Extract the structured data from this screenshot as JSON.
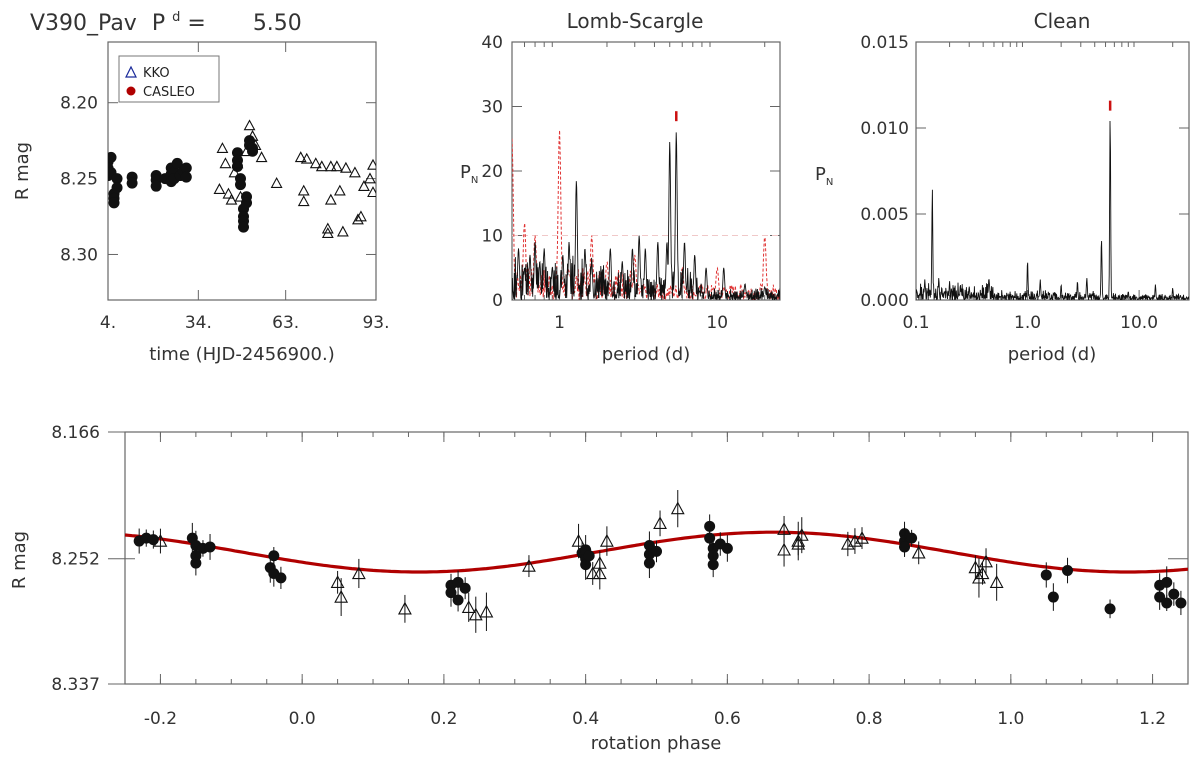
{
  "colors": {
    "red": "#cc1111",
    "dark_red": "#b00000",
    "black": "#111111",
    "frame": "#666666",
    "noise_red": "#e03333"
  },
  "chart_data": [
    {
      "id": "light-curve",
      "type": "scatter",
      "title_star": "V390_Pav",
      "title_period_label": "P",
      "title_period_sup": "d",
      "title_period_eq": "=",
      "title_period_value": "5.50",
      "xlabel": "time (HJD-2456900.)",
      "ylabel": "R mag",
      "xlim": [
        4,
        93
      ],
      "ylim": [
        8.33,
        8.16
      ],
      "xticks": [
        "4.",
        "34.",
        "63.",
        "93."
      ],
      "xtick_values": [
        4,
        34,
        63,
        93
      ],
      "yticks": [
        "8.20",
        "8.25",
        "8.30"
      ],
      "ytick_values": [
        8.2,
        8.25,
        8.3
      ],
      "legend": [
        {
          "marker": "triangle",
          "label": "KKO"
        },
        {
          "marker": "dot",
          "label": "CASLEO"
        }
      ],
      "casleo": [
        [
          4,
          8.239
        ],
        [
          4,
          8.243
        ],
        [
          4,
          8.248
        ],
        [
          5,
          8.236
        ],
        [
          5,
          8.246
        ],
        [
          6,
          8.26
        ],
        [
          6,
          8.263
        ],
        [
          6,
          8.266
        ],
        [
          7,
          8.25
        ],
        [
          7,
          8.256
        ],
        [
          12,
          8.249
        ],
        [
          12,
          8.253
        ],
        [
          20,
          8.248
        ],
        [
          20,
          8.251
        ],
        [
          20,
          8.255
        ],
        [
          23,
          8.25
        ],
        [
          25,
          8.243
        ],
        [
          25,
          8.247
        ],
        [
          25,
          8.252
        ],
        [
          26,
          8.246
        ],
        [
          26,
          8.25
        ],
        [
          27,
          8.24
        ],
        [
          28,
          8.248
        ],
        [
          29,
          8.245
        ],
        [
          30,
          8.243
        ],
        [
          30,
          8.249
        ],
        [
          47,
          8.233
        ],
        [
          47,
          8.238
        ],
        [
          47,
          8.242
        ],
        [
          49,
          8.27
        ],
        [
          49,
          8.275
        ],
        [
          49,
          8.278
        ],
        [
          49,
          8.282
        ],
        [
          50,
          8.262
        ],
        [
          50,
          8.266
        ],
        [
          51,
          8.225
        ],
        [
          51,
          8.228
        ],
        [
          52,
          8.232
        ],
        [
          52,
          8.23
        ],
        [
          48,
          8.254
        ],
        [
          48,
          8.25
        ]
      ],
      "kko": [
        [
          41,
          8.257
        ],
        [
          42,
          8.23
        ],
        [
          43,
          8.24
        ],
        [
          44,
          8.26
        ],
        [
          45,
          8.264
        ],
        [
          46,
          8.246
        ],
        [
          47,
          8.24
        ],
        [
          48,
          8.262
        ],
        [
          50,
          8.232
        ],
        [
          51,
          8.215
        ],
        [
          52,
          8.222
        ],
        [
          53,
          8.228
        ],
        [
          55,
          8.236
        ],
        [
          60,
          8.253
        ],
        [
          68,
          8.236
        ],
        [
          69,
          8.258
        ],
        [
          69,
          8.265
        ],
        [
          70,
          8.237
        ],
        [
          73,
          8.24
        ],
        [
          75,
          8.242
        ],
        [
          77,
          8.283
        ],
        [
          77,
          8.286
        ],
        [
          78,
          8.264
        ],
        [
          78,
          8.242
        ],
        [
          80,
          8.242
        ],
        [
          81,
          8.258
        ],
        [
          82,
          8.285
        ],
        [
          83,
          8.243
        ],
        [
          86,
          8.246
        ],
        [
          87,
          8.277
        ],
        [
          88,
          8.275
        ],
        [
          89,
          8.255
        ],
        [
          91,
          8.25
        ],
        [
          92,
          8.241
        ],
        [
          92,
          8.259
        ]
      ]
    },
    {
      "id": "lomb-scargle",
      "type": "line",
      "title": "Lomb-Scargle",
      "xlabel": "period (d)",
      "ylabel": "P",
      "ylabel_sub": "N",
      "xscale": "log",
      "xlim": [
        0.5,
        25
      ],
      "ylim": [
        0,
        40
      ],
      "xticks": [
        "1",
        "10"
      ],
      "xtick_values": [
        1,
        10
      ],
      "yticks": [
        "0",
        "10",
        "20",
        "30",
        "40"
      ],
      "ytick_values": [
        0,
        10,
        20,
        30,
        40
      ],
      "peak_marker_period": 5.5,
      "peak_marker_power": 28.5,
      "false_alarm_level": 10,
      "main_peaks": [
        [
          0.55,
          8
        ],
        [
          0.6,
          5
        ],
        [
          0.65,
          7
        ],
        [
          0.7,
          9
        ],
        [
          0.75,
          6
        ],
        [
          0.8,
          8
        ],
        [
          0.9,
          5
        ],
        [
          1.05,
          7
        ],
        [
          1.15,
          9
        ],
        [
          1.28,
          18.5
        ],
        [
          1.45,
          8
        ],
        [
          1.6,
          6
        ],
        [
          2.1,
          8
        ],
        [
          2.5,
          6
        ],
        [
          2.9,
          8
        ],
        [
          3.2,
          10
        ],
        [
          3.5,
          8
        ],
        [
          4.2,
          9
        ],
        [
          4.8,
          9
        ],
        [
          5.0,
          24.5
        ],
        [
          5.5,
          26
        ],
        [
          6.2,
          9
        ],
        [
          7.2,
          7
        ],
        [
          8.5,
          5
        ],
        [
          11,
          5
        ],
        [
          15,
          2.5
        ],
        [
          20,
          2
        ]
      ],
      "window_peaks": [
        [
          1.0,
          26.5
        ],
        [
          0.5,
          25
        ],
        [
          1.6,
          10
        ],
        [
          0.6,
          12
        ],
        [
          0.7,
          10
        ],
        [
          2.0,
          6
        ],
        [
          3.0,
          7
        ],
        [
          6,
          5
        ],
        [
          10,
          5
        ],
        [
          20,
          10
        ]
      ]
    },
    {
      "id": "clean",
      "type": "line",
      "title": "Clean",
      "xlabel": "period (d)",
      "ylabel": "P",
      "ylabel_sub": "N",
      "xscale": "log",
      "xlim": [
        0.1,
        28
      ],
      "ylim": [
        0,
        0.015
      ],
      "xticks": [
        "0.1",
        "1.0",
        "10.0"
      ],
      "xtick_values": [
        0.1,
        1.0,
        10.0
      ],
      "yticks": [
        "0.000",
        "0.005",
        "0.010",
        "0.015"
      ],
      "ytick_values": [
        0,
        0.005,
        0.01,
        0.015
      ],
      "peak_marker_period": 5.5,
      "peak_marker_power": 0.0113,
      "peaks": [
        [
          0.12,
          0.0012
        ],
        [
          0.14,
          0.0065
        ],
        [
          0.16,
          0.0013
        ],
        [
          0.2,
          0.0011
        ],
        [
          0.25,
          0.0009
        ],
        [
          0.3,
          0.0008
        ],
        [
          0.45,
          0.0013
        ],
        [
          1.0,
          0.0023
        ],
        [
          1.3,
          0.0012
        ],
        [
          2.0,
          0.0009
        ],
        [
          2.8,
          0.0011
        ],
        [
          3.4,
          0.0013
        ],
        [
          4.6,
          0.0036
        ],
        [
          5.5,
          0.0107
        ],
        [
          8,
          0.0005
        ],
        [
          14,
          0.0009
        ],
        [
          20,
          0.0007
        ]
      ]
    },
    {
      "id": "phase-curve",
      "type": "scatter",
      "xlabel": "rotation phase",
      "ylabel": "R mag",
      "xlim": [
        -0.25,
        1.25
      ],
      "ylim": [
        8.337,
        8.166
      ],
      "xticks": [
        "-0.2",
        "0.0",
        "0.2",
        "0.4",
        "0.6",
        "0.8",
        "1.0",
        "1.2"
      ],
      "xtick_values": [
        -0.2,
        0,
        0.2,
        0.4,
        0.6,
        0.8,
        1.0,
        1.2
      ],
      "yticks": [
        "8.166",
        "8.252",
        "8.337"
      ],
      "ytick_values": [
        8.166,
        8.252,
        8.337
      ],
      "fit": {
        "mean": 8.2475,
        "amplitude": 0.0135,
        "phase_of_max": 0.665
      },
      "casleo": [
        [
          -0.23,
          8.24
        ],
        [
          -0.22,
          8.238
        ],
        [
          -0.21,
          8.239
        ],
        [
          -0.155,
          8.238
        ],
        [
          -0.15,
          8.243
        ],
        [
          -0.15,
          8.25
        ],
        [
          -0.15,
          8.255
        ],
        [
          -0.14,
          8.245
        ],
        [
          -0.13,
          8.244
        ],
        [
          -0.045,
          8.258
        ],
        [
          -0.04,
          8.25
        ],
        [
          -0.04,
          8.262
        ],
        [
          -0.03,
          8.265
        ],
        [
          0.21,
          8.27
        ],
        [
          0.21,
          8.275
        ],
        [
          0.22,
          8.28
        ],
        [
          0.22,
          8.268
        ],
        [
          0.23,
          8.272
        ],
        [
          0.395,
          8.248
        ],
        [
          0.4,
          8.252
        ],
        [
          0.4,
          8.256
        ],
        [
          0.4,
          8.246
        ],
        [
          0.405,
          8.25
        ],
        [
          0.49,
          8.243
        ],
        [
          0.49,
          8.249
        ],
        [
          0.49,
          8.255
        ],
        [
          0.5,
          8.247
        ],
        [
          0.575,
          8.23
        ],
        [
          0.575,
          8.238
        ],
        [
          0.58,
          8.245
        ],
        [
          0.58,
          8.25
        ],
        [
          0.58,
          8.256
        ],
        [
          0.59,
          8.242
        ],
        [
          0.6,
          8.245
        ],
        [
          0.85,
          8.235
        ],
        [
          0.85,
          8.24
        ],
        [
          0.85,
          8.244
        ],
        [
          0.86,
          8.238
        ],
        [
          1.05,
          8.263
        ],
        [
          1.06,
          8.278
        ],
        [
          1.08,
          8.26
        ],
        [
          1.14,
          8.286
        ],
        [
          1.21,
          8.27
        ],
        [
          1.21,
          8.278
        ],
        [
          1.22,
          8.282
        ],
        [
          1.22,
          8.268
        ],
        [
          1.23,
          8.276
        ],
        [
          1.24,
          8.282
        ]
      ],
      "kko": [
        [
          -0.2,
          8.24
        ],
        [
          0.05,
          8.268
        ],
        [
          0.055,
          8.278
        ],
        [
          0.08,
          8.262
        ],
        [
          0.145,
          8.286
        ],
        [
          0.235,
          8.285
        ],
        [
          0.245,
          8.29
        ],
        [
          0.26,
          8.288
        ],
        [
          0.32,
          8.257
        ],
        [
          0.39,
          8.24
        ],
        [
          0.41,
          8.262
        ],
        [
          0.42,
          8.255
        ],
        [
          0.42,
          8.262
        ],
        [
          0.43,
          8.24
        ],
        [
          0.505,
          8.228
        ],
        [
          0.53,
          8.218
        ],
        [
          0.68,
          8.232
        ],
        [
          0.68,
          8.246
        ],
        [
          0.7,
          8.24
        ],
        [
          0.7,
          8.242
        ],
        [
          0.705,
          8.236
        ],
        [
          0.77,
          8.242
        ],
        [
          0.78,
          8.24
        ],
        [
          0.79,
          8.238
        ],
        [
          0.87,
          8.248
        ],
        [
          0.95,
          8.258
        ],
        [
          0.955,
          8.265
        ],
        [
          0.96,
          8.262
        ],
        [
          0.965,
          8.254
        ],
        [
          0.98,
          8.268
        ]
      ]
    }
  ]
}
